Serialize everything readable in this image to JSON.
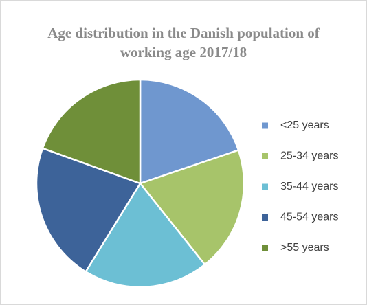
{
  "chart_data": {
    "type": "pie",
    "title": "Age distribution in the Danish population of working age 2017/18",
    "categories": [
      "<25 years",
      "25-34 years",
      "35-44 years",
      "45-54 years",
      ">55 years"
    ],
    "values": [
      19.8,
      19.5,
      19.5,
      21.7,
      19.5
    ],
    "colors": [
      "#6f97cf",
      "#a7c46a",
      "#6cbfd4",
      "#3d6399",
      "#6f8f39"
    ],
    "legend": "right"
  }
}
